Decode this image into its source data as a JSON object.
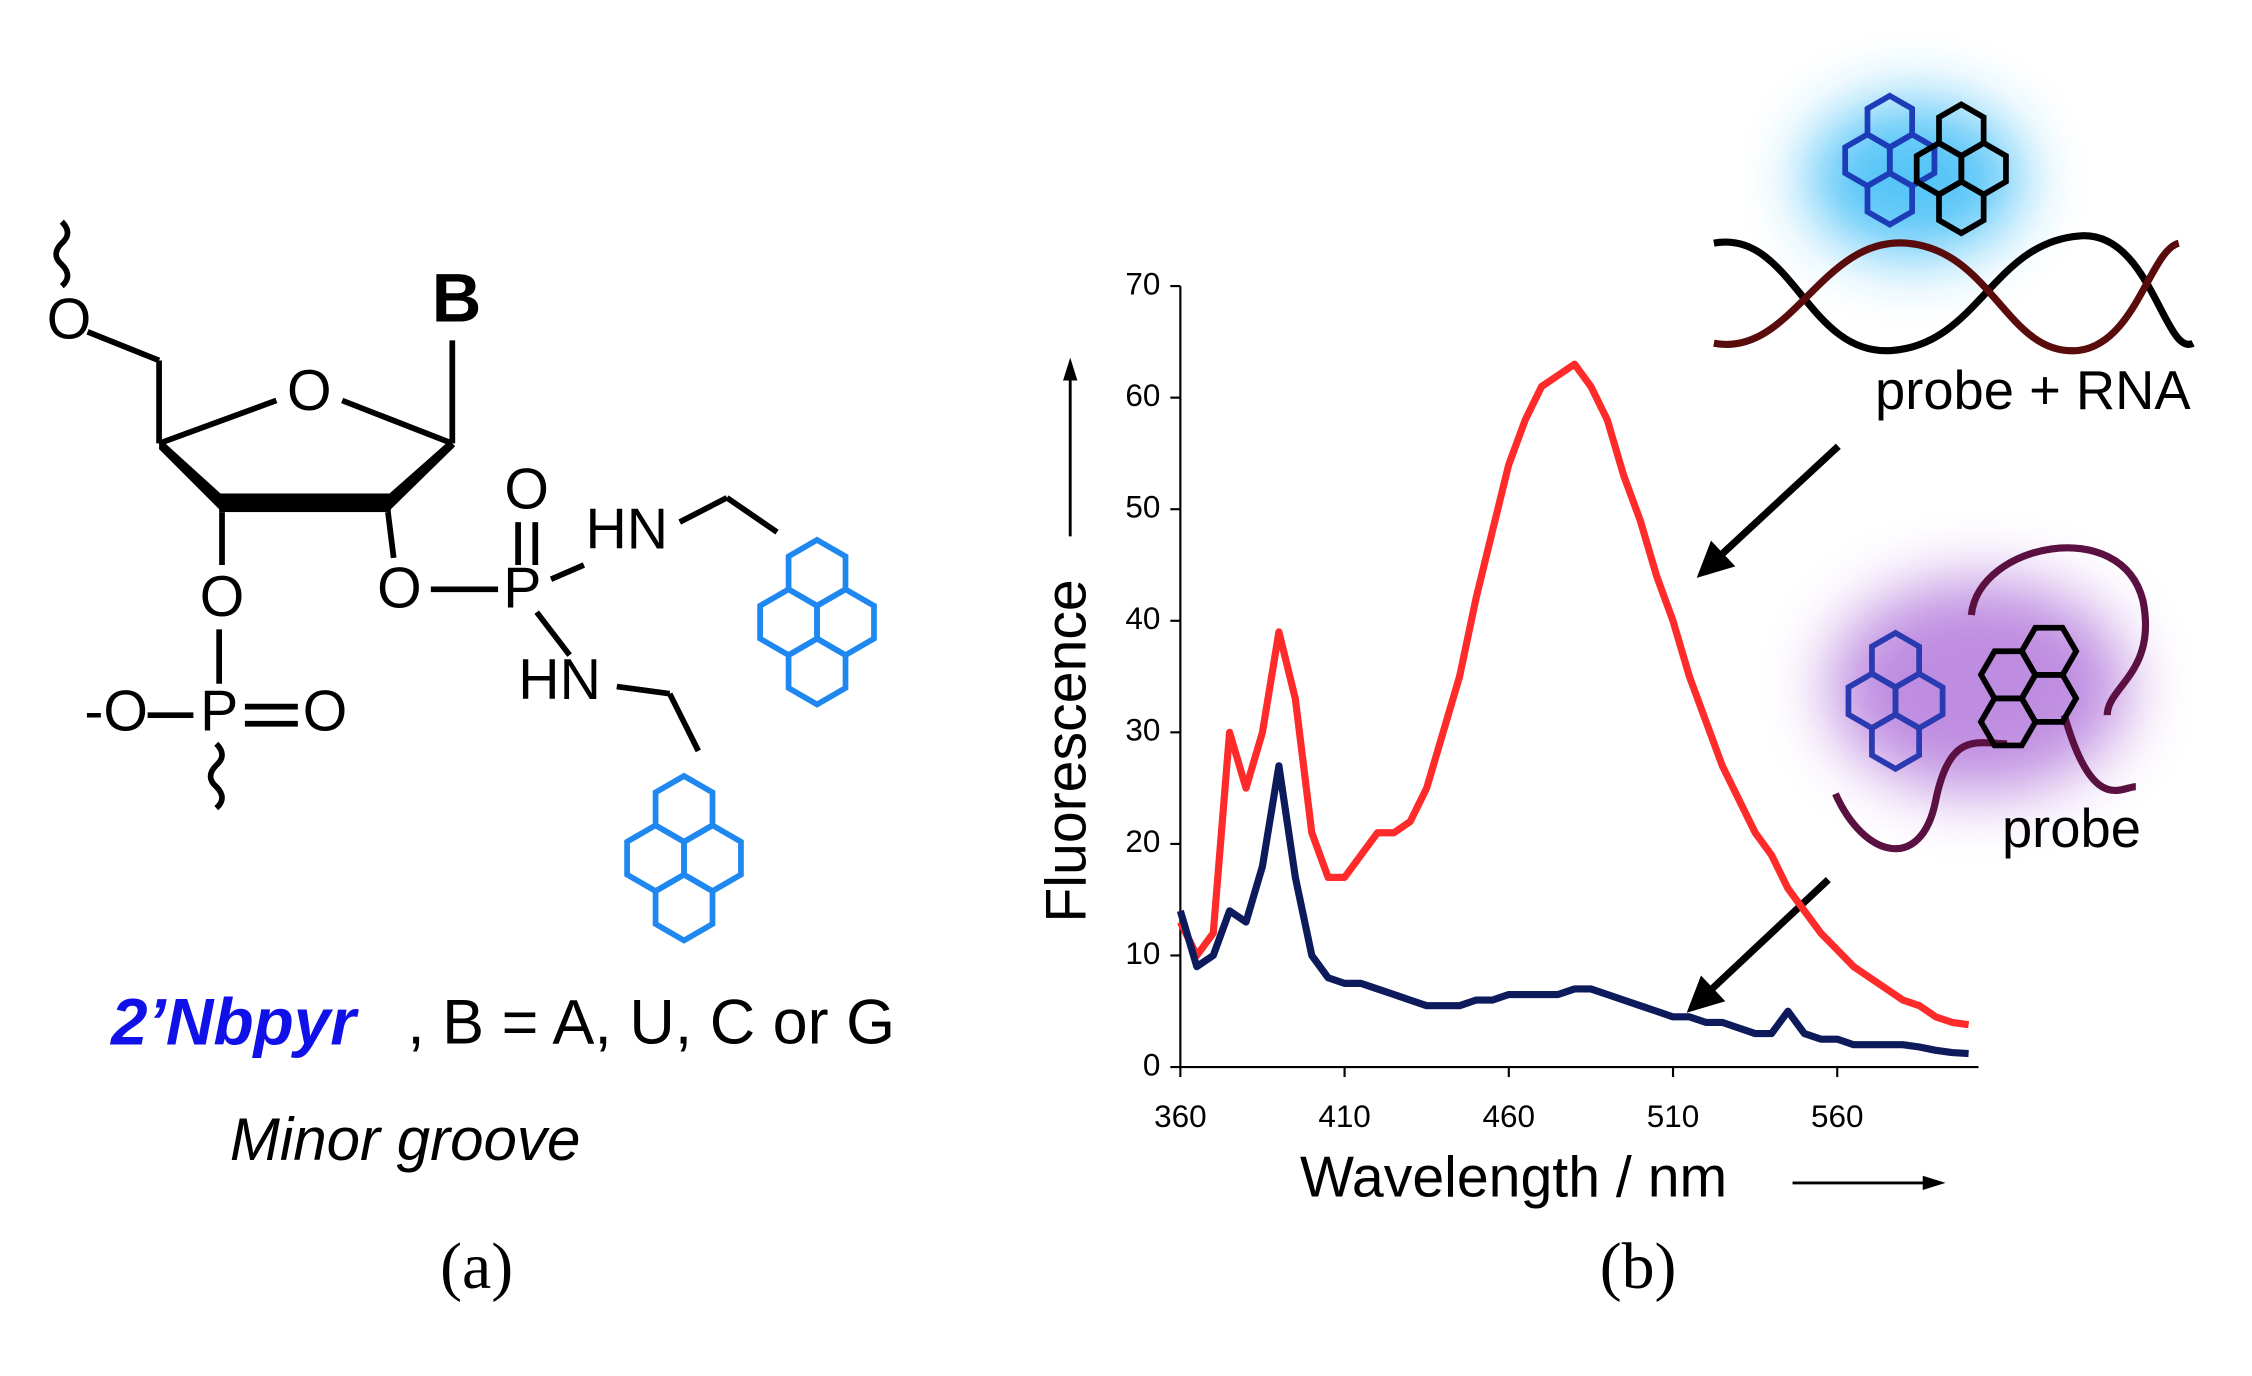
{
  "structure": {
    "atoms": [
      "O",
      "B",
      "O",
      "O",
      "O",
      "P",
      "O",
      "HN",
      "HN",
      "-O",
      "P",
      "O"
    ],
    "caption_name": "2’Nbpyr",
    "caption_rest": ", B = A, U, C or G",
    "caption_sub": "Minor groove",
    "panel_label": "(a)"
  },
  "chart_data": {
    "type": "line",
    "panel_label": "(b)",
    "xlabel": "Wavelength / nm",
    "ylabel": "Fluorescence",
    "annotations": [
      "probe + RNA",
      "probe"
    ],
    "x": [
      360,
      365,
      370,
      375,
      380,
      385,
      390,
      395,
      400,
      405,
      410,
      415,
      420,
      425,
      430,
      435,
      440,
      445,
      450,
      455,
      460,
      465,
      470,
      475,
      480,
      485,
      490,
      495,
      500,
      505,
      510,
      515,
      520,
      525,
      530,
      535,
      540,
      545,
      550,
      555,
      560,
      565,
      570,
      575,
      580,
      585,
      590,
      595,
      600
    ],
    "series": [
      {
        "name": "probe + RNA",
        "color": "#ff2a2a",
        "values": [
          13,
          10,
          12,
          30,
          25,
          30,
          39,
          33,
          21,
          17,
          17,
          19,
          21,
          21,
          22,
          25,
          30,
          35,
          42,
          48,
          54,
          58,
          61,
          62,
          63,
          61,
          58,
          53,
          49,
          44,
          40,
          35,
          31,
          27,
          24,
          21,
          19,
          16,
          14,
          12,
          10.5,
          9,
          8,
          7,
          6,
          5.5,
          4.5,
          4,
          3.8
        ]
      },
      {
        "name": "probe",
        "color": "#0d1a5c",
        "values": [
          14,
          9,
          10,
          14,
          13,
          18,
          27,
          17,
          10,
          8,
          7.5,
          7.5,
          7,
          6.5,
          6,
          5.5,
          5.5,
          5.5,
          6,
          6,
          6.5,
          6.5,
          6.5,
          6.5,
          7,
          7,
          6.5,
          6,
          5.5,
          5,
          4.5,
          4.5,
          4,
          4,
          3.5,
          3,
          3,
          5,
          3,
          2.5,
          2.5,
          2,
          2,
          2,
          2,
          1.8,
          1.5,
          1.3,
          1.2
        ]
      }
    ],
    "xlim": [
      360,
      603
    ],
    "ylim": [
      0,
      70
    ],
    "xticks": [
      360,
      410,
      460,
      510,
      560
    ],
    "yticks": [
      0,
      10,
      20,
      30,
      40,
      50,
      60,
      70
    ]
  }
}
